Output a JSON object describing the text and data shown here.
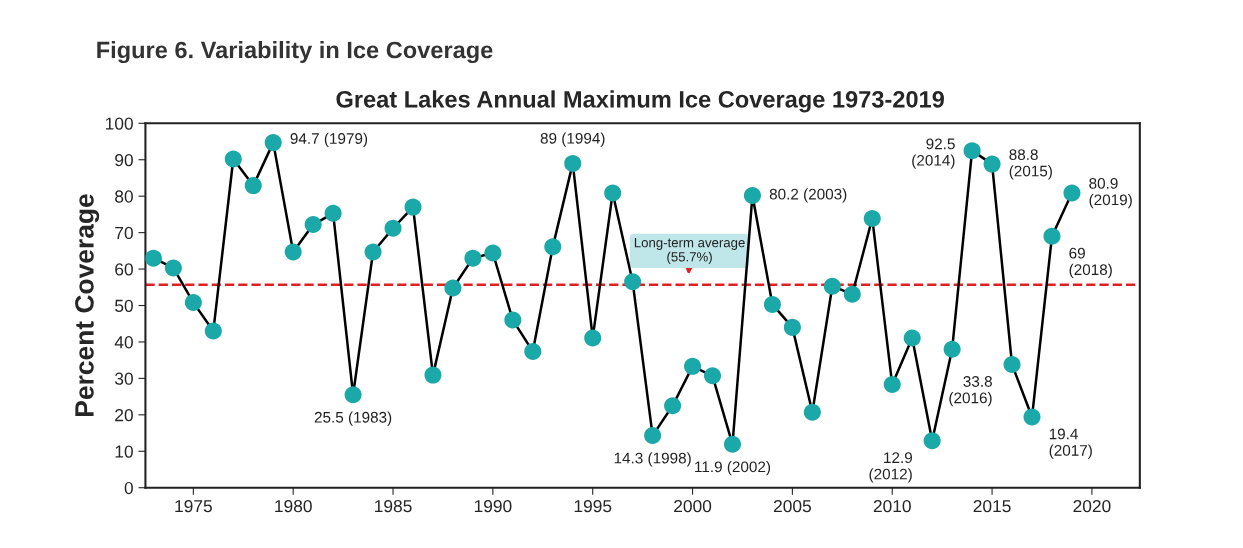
{
  "chart_data": {
    "type": "line",
    "title": "Figure 6. Variability in Ice Coverage",
    "subtitle": "Great Lakes Annual Maximum Ice Coverage 1973-2019",
    "ylabel": "Percent Coverage",
    "x": [
      1973,
      1974,
      1975,
      1976,
      1977,
      1978,
      1979,
      1980,
      1981,
      1982,
      1983,
      1984,
      1985,
      1986,
      1987,
      1988,
      1989,
      1990,
      1991,
      1992,
      1993,
      1994,
      1995,
      1996,
      1997,
      1998,
      1999,
      2000,
      2001,
      2002,
      2003,
      2004,
      2005,
      2006,
      2007,
      2008,
      2009,
      2010,
      2011,
      2012,
      2013,
      2014,
      2015,
      2016,
      2017,
      2018,
      2019
    ],
    "series": [
      {
        "color": "#1aa8a8",
        "values": [
          63.0,
          60.3,
          50.8,
          43.0,
          90.2,
          82.9,
          94.7,
          64.7,
          72.2,
          75.3,
          25.5,
          64.7,
          71.2,
          77.0,
          30.9,
          54.8,
          63.0,
          64.4,
          46.0,
          37.4,
          66.1,
          89,
          41.1,
          80.9,
          56.5,
          14.3,
          22.5,
          33.3,
          30.7,
          11.9,
          80.2,
          50.3,
          44.0,
          20.7,
          55.3,
          53.1,
          73.9,
          28.3,
          41.1,
          12.9,
          38.0,
          92.5,
          88.8,
          33.8,
          19.4,
          69,
          80.9
        ]
      }
    ],
    "marker": "circle",
    "line_style": "solid",
    "xlim": [
      1972.6,
      2022.4
    ],
    "xticks": [
      1975,
      1980,
      1985,
      1990,
      1995,
      2000,
      2005,
      2010,
      2015,
      2020
    ],
    "ylim": [
      0,
      100
    ],
    "yticks": [
      0,
      10,
      20,
      30,
      40,
      50,
      60,
      70,
      80,
      90,
      100
    ],
    "grid": false,
    "legend": false,
    "ref_lines": [
      {
        "axis": "y",
        "value": 55.7,
        "label": "Long-term average\n(55.7%)",
        "color": "#e02020",
        "line_style": "dashed"
      }
    ],
    "annotations": [
      {
        "text": "94.7 (1979)",
        "x": 1979,
        "y": 94.7
      },
      {
        "text": "25.5 (1983)",
        "x": 1983,
        "y": 25.5
      },
      {
        "text": "89 (1994)",
        "x": 1994,
        "y": 89
      },
      {
        "text": "14.3 (1998)",
        "x": 1998,
        "y": 14.3
      },
      {
        "text": "11.9 (2002)",
        "x": 2002,
        "y": 11.9
      },
      {
        "text": "80.2 (2003)",
        "x": 2003,
        "y": 80.2
      },
      {
        "text": "12.9\n(2012)",
        "x": 2012,
        "y": 12.9
      },
      {
        "text": "92.5\n(2014)",
        "x": 2014,
        "y": 92.5
      },
      {
        "text": "88.8\n(2015)",
        "x": 2015,
        "y": 88.8
      },
      {
        "text": "33.8\n(2016)",
        "x": 2016,
        "y": 33.8
      },
      {
        "text": "19.4\n(2017)",
        "x": 2017,
        "y": 19.4
      },
      {
        "text": "69\n(2018)",
        "x": 2018,
        "y": 69
      },
      {
        "text": "80.9\n(2019)",
        "x": 2019,
        "y": 80.9
      }
    ]
  }
}
